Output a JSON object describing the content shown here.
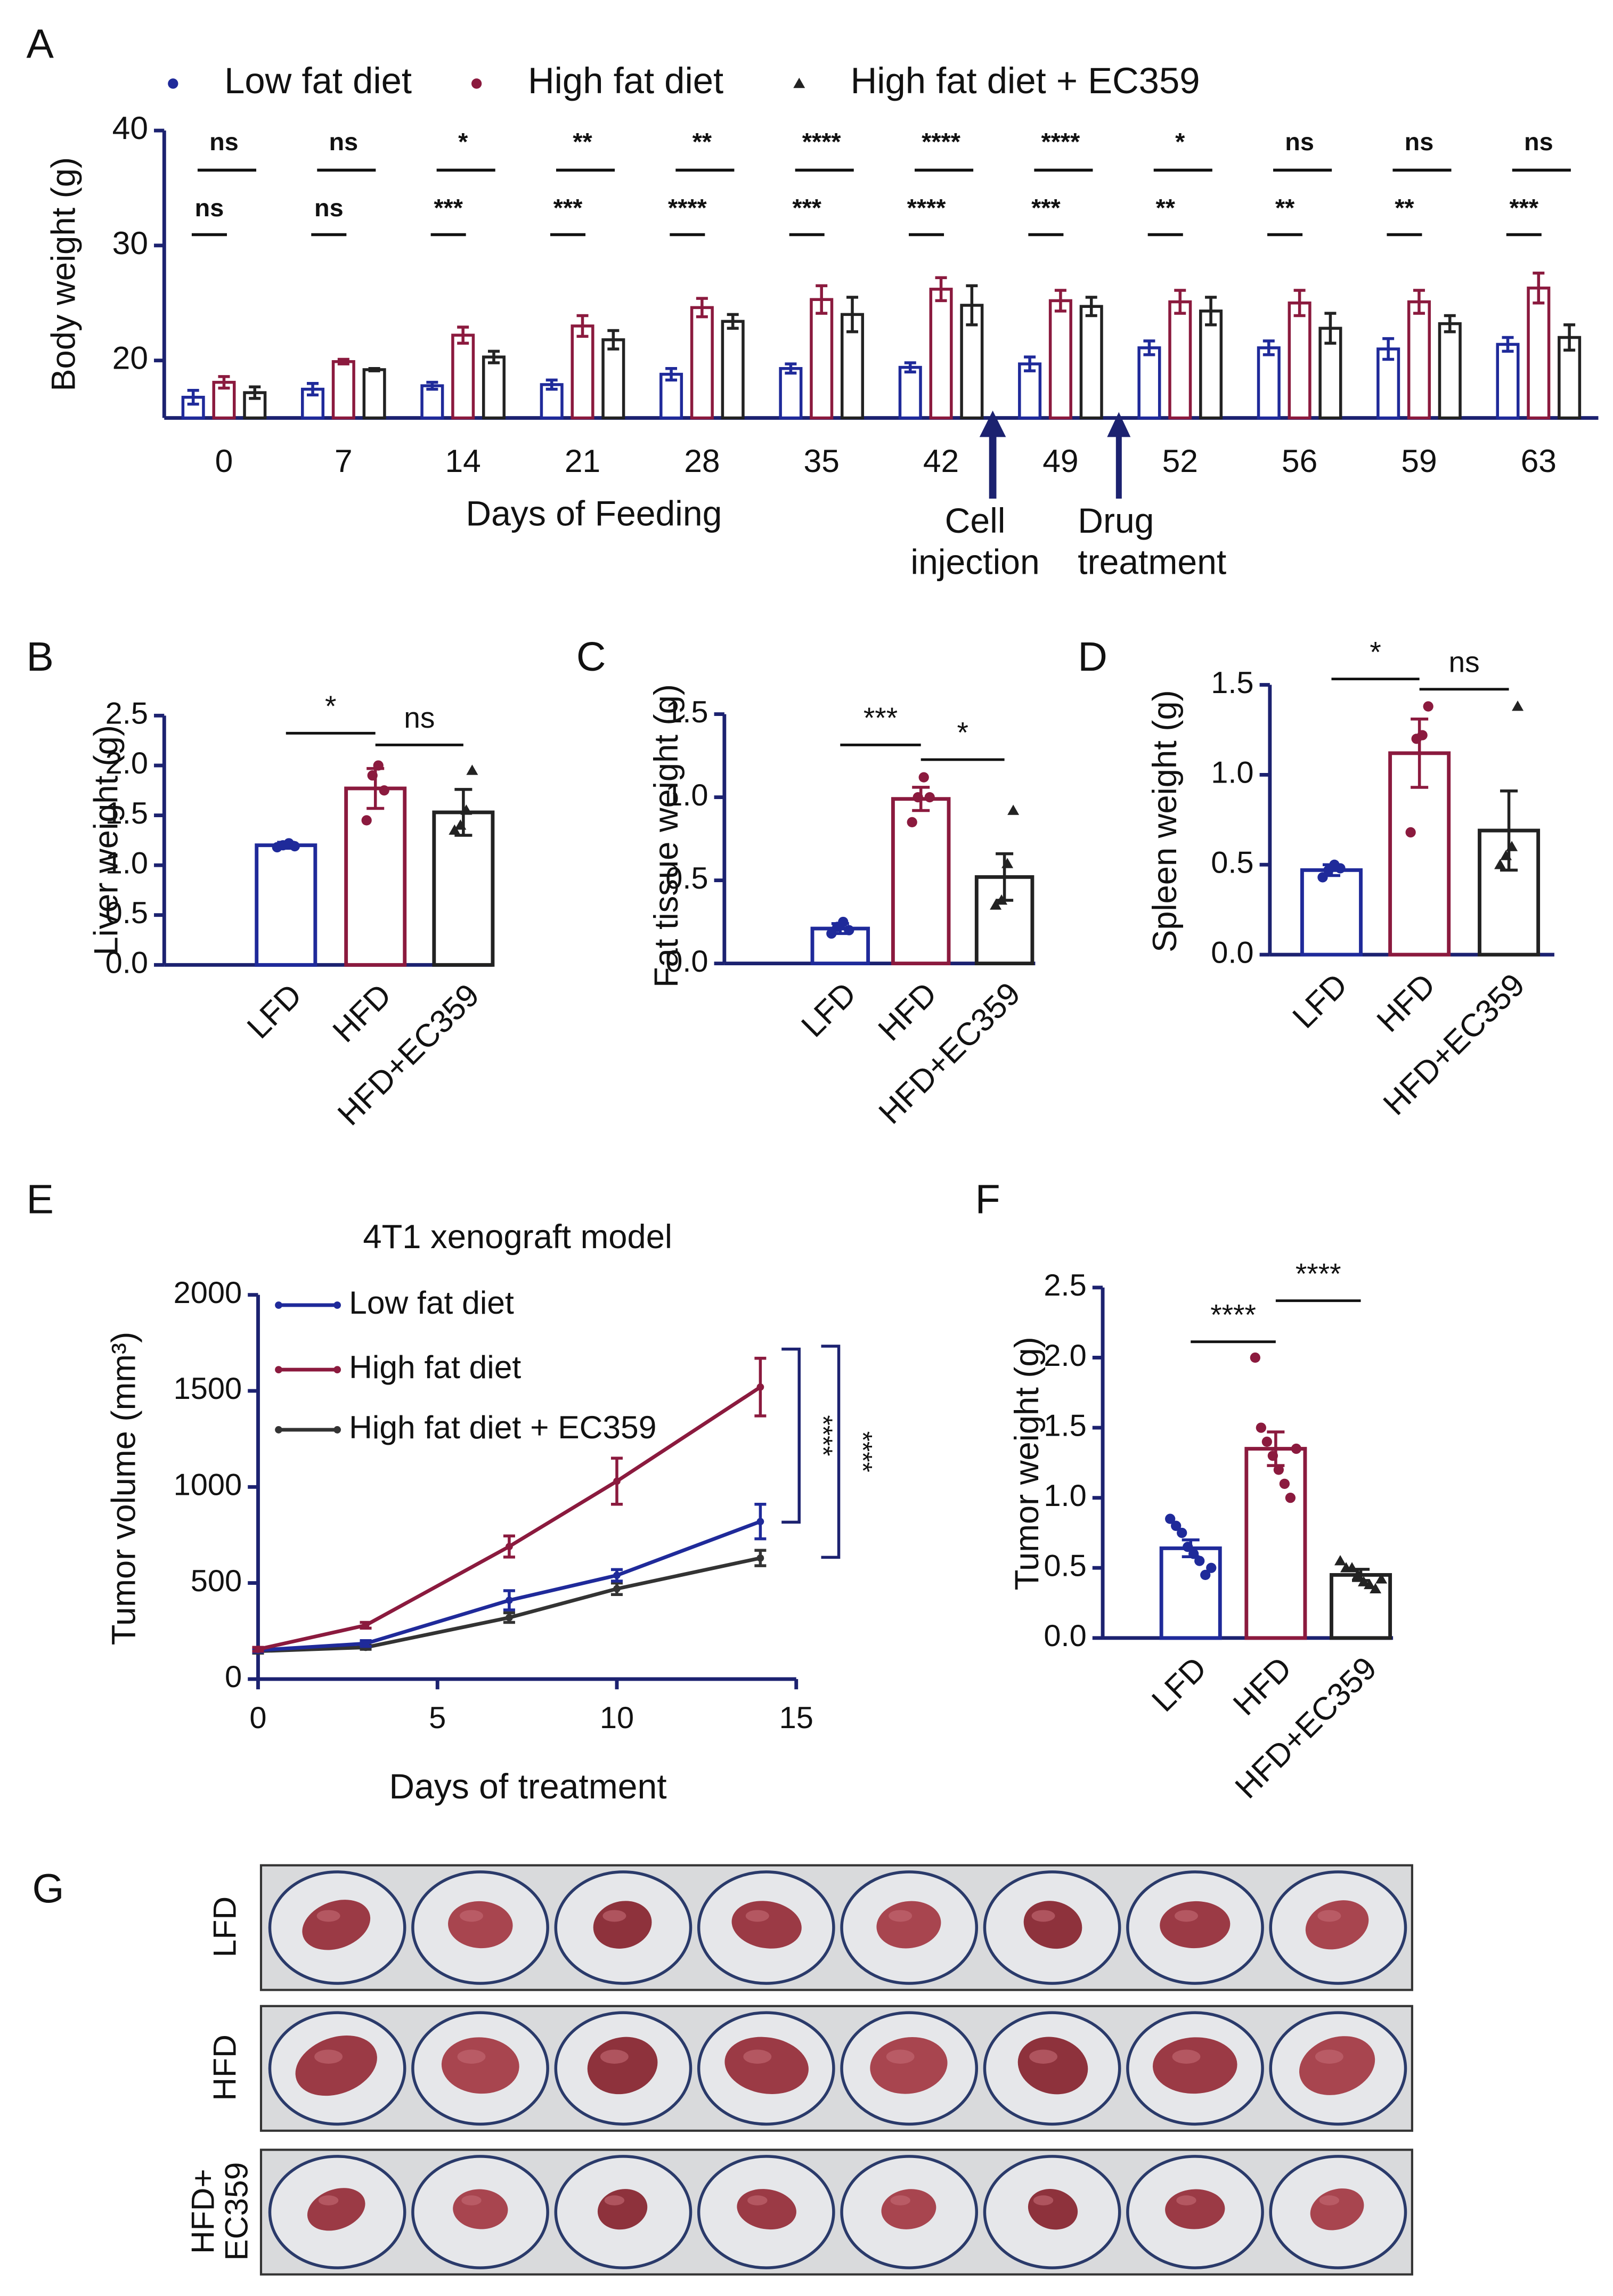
{
  "chart_data": [
    {
      "type": "bar",
      "panel": "A",
      "ylabel": "Body weight (g)",
      "xlabel": "Days of Feeding",
      "categories": [
        "0",
        "7",
        "14",
        "21",
        "28",
        "35",
        "42",
        "49",
        "52",
        "56",
        "59",
        "63"
      ],
      "series": [
        {
          "name": "Low fat diet",
          "color": "#1f2a9a",
          "values": [
            16.8,
            17.5,
            17.8,
            17.9,
            18.8,
            19.3,
            19.4,
            19.7,
            21.1,
            21.1,
            21.0,
            21.4
          ],
          "errors": [
            0.6,
            0.5,
            0.3,
            0.4,
            0.5,
            0.4,
            0.4,
            0.6,
            0.6,
            0.6,
            0.9,
            0.6
          ]
        },
        {
          "name": "High fat diet",
          "color": "#8b1a3e",
          "values": [
            18.1,
            19.9,
            22.2,
            23.0,
            24.6,
            25.3,
            26.2,
            25.2,
            25.1,
            25.0,
            25.1,
            26.3
          ],
          "errors": [
            0.5,
            0.2,
            0.7,
            0.9,
            0.8,
            1.2,
            1.0,
            0.9,
            1.0,
            1.1,
            1.0,
            1.3
          ]
        },
        {
          "name": "High fat diet + EC359",
          "color": "#222222",
          "legend_color": "#555555",
          "values": [
            17.2,
            19.2,
            20.3,
            21.8,
            23.4,
            24.0,
            24.8,
            24.7,
            24.3,
            22.8,
            23.2,
            22.0
          ],
          "errors": [
            0.5,
            0.1,
            0.5,
            0.8,
            0.6,
            1.5,
            1.7,
            0.8,
            1.2,
            1.3,
            0.7,
            1.1
          ]
        }
      ],
      "significance_upper": [
        "ns",
        "ns",
        "*",
        "**",
        "**",
        "****",
        "****",
        "****",
        "*",
        "ns",
        "ns",
        "ns"
      ],
      "significance_lower": [
        "ns",
        "ns",
        "***",
        "***",
        "****",
        "***",
        "****",
        "***",
        "**",
        "**",
        "**",
        "***"
      ],
      "annotations": [
        [
          "Cell",
          "injection"
        ],
        [
          "Drug",
          "treatment"
        ]
      ],
      "ylim": [
        15,
        40
      ],
      "yticks": [
        20,
        30,
        40
      ]
    },
    {
      "type": "bar",
      "panel": "B",
      "ylabel": "Liver weight (g)",
      "categories": [
        "LFD",
        "HFD",
        "HFD+EC359"
      ],
      "colors": [
        "#1f2a9a",
        "#8b1a3e",
        "#222222"
      ],
      "values": [
        1.2,
        1.77,
        1.53
      ],
      "errors": [
        0.03,
        0.2,
        0.23
      ],
      "points": [
        [
          1.18,
          1.2,
          1.22,
          1.19
        ],
        [
          1.45,
          1.9,
          2.0,
          1.75
        ],
        [
          1.35,
          1.4,
          1.55,
          1.95
        ]
      ],
      "significance": [
        "*",
        "ns"
      ],
      "ylim": [
        0,
        2.5
      ],
      "yticks": [
        {
          "value": 0,
          "label": "0.0"
        },
        {
          "value": 0.5,
          "label": "0.5"
        },
        {
          "value": 1,
          "label": "1.0"
        },
        {
          "value": 1.5,
          "label": "1.5"
        },
        {
          "value": 2,
          "label": "2.0"
        },
        {
          "value": 2.5,
          "label": "2.5"
        }
      ]
    },
    {
      "type": "bar",
      "panel": "C",
      "ylabel": "Fat tissue weight (g)",
      "categories": [
        "LFD",
        "HFD",
        "HFD+EC359"
      ],
      "colors": [
        "#1f2a9a",
        "#8b1a3e",
        "#222222"
      ],
      "values": [
        0.21,
        0.99,
        0.52
      ],
      "errors": [
        0.03,
        0.07,
        0.14
      ],
      "points": [
        [
          0.18,
          0.22,
          0.25,
          0.2
        ],
        [
          0.85,
          1.0,
          1.12,
          1.0
        ],
        [
          0.35,
          0.38,
          0.6,
          0.92
        ]
      ],
      "significance": [
        "***",
        "*"
      ],
      "ylim": [
        0,
        1.5
      ],
      "yticks": [
        {
          "value": 0,
          "label": "0.0"
        },
        {
          "value": 0.5,
          "label": "0.5"
        },
        {
          "value": 1,
          "label": "1.0"
        },
        {
          "value": 1.5,
          "label": "1.5"
        }
      ]
    },
    {
      "type": "bar",
      "panel": "D",
      "ylabel": "Spleen weight (g)",
      "categories": [
        "LFD",
        "HFD",
        "HFD+EC359"
      ],
      "colors": [
        "#1f2a9a",
        "#8b1a3e",
        "#222222"
      ],
      "values": [
        0.47,
        1.12,
        0.69
      ],
      "errors": [
        0.03,
        0.19,
        0.22
      ],
      "points": [
        [
          0.43,
          0.47,
          0.5,
          0.48
        ],
        [
          0.68,
          1.2,
          1.22,
          1.38
        ],
        [
          0.5,
          0.55,
          0.6,
          1.38
        ]
      ],
      "significance": [
        "*",
        "ns"
      ],
      "ylim": [
        0,
        1.5
      ],
      "yticks": [
        {
          "value": 0,
          "label": "0.0"
        },
        {
          "value": 0.5,
          "label": "0.5"
        },
        {
          "value": 1,
          "label": "1.0"
        },
        {
          "value": 1.5,
          "label": "1.5"
        }
      ]
    },
    {
      "type": "line",
      "panel": "E",
      "title": "4T1 xenograft model",
      "xlabel": "Days of treatment",
      "ylabel": "Tumor volume (mm³)",
      "x": [
        0,
        3,
        7,
        10,
        14
      ],
      "series": [
        {
          "name": "Low fat diet",
          "color": "#1f2a9a",
          "values": [
            150,
            185,
            410,
            540,
            820
          ],
          "errors": [
            10,
            15,
            50,
            30,
            90
          ]
        },
        {
          "name": "High fat diet",
          "color": "#8b1a3e",
          "values": [
            155,
            280,
            690,
            1030,
            1520
          ],
          "errors": [
            10,
            15,
            55,
            120,
            150
          ]
        },
        {
          "name": "High fat diet + EC359",
          "color": "#333333",
          "values": [
            145,
            165,
            320,
            470,
            630
          ],
          "errors": [
            10,
            10,
            25,
            30,
            40
          ]
        }
      ],
      "significance": [
        "****",
        "****"
      ],
      "xlim": [
        0,
        15
      ],
      "xticks": [
        0,
        5,
        10,
        15
      ],
      "ylim": [
        0,
        2000
      ],
      "yticks": [
        0,
        500,
        1000,
        1500,
        2000
      ]
    },
    {
      "type": "bar",
      "panel": "F",
      "ylabel": "Tumor weight (g)",
      "categories": [
        "LFD",
        "HFD",
        "HFD+EC359"
      ],
      "colors": [
        "#1f2a9a",
        "#8b1a3e",
        "#222222"
      ],
      "values": [
        0.64,
        1.35,
        0.45
      ],
      "errors": [
        0.06,
        0.12,
        0.04
      ],
      "points": [
        [
          0.85,
          0.8,
          0.75,
          0.65,
          0.6,
          0.55,
          0.45,
          0.5
        ],
        [
          2.0,
          1.5,
          1.4,
          1.3,
          1.2,
          1.1,
          1.0,
          1.35
        ],
        [
          0.55,
          0.5,
          0.5,
          0.45,
          0.4,
          0.38,
          0.35,
          0.42
        ]
      ],
      "significance": [
        "****",
        "****"
      ],
      "ylim": [
        0,
        2.5
      ],
      "yticks": [
        {
          "value": 0,
          "label": "0.0"
        },
        {
          "value": 0.5,
          "label": "0.5"
        },
        {
          "value": 1,
          "label": "1.0"
        },
        {
          "value": 1.5,
          "label": "1.5"
        },
        {
          "value": 2,
          "label": "2.0"
        },
        {
          "value": 2.5,
          "label": "2.5"
        }
      ]
    }
  ],
  "figure_g": {
    "panel": "G",
    "rows": [
      [
        "LFD"
      ],
      [
        "HFD"
      ],
      [
        "HFD+",
        "EC359"
      ]
    ]
  }
}
